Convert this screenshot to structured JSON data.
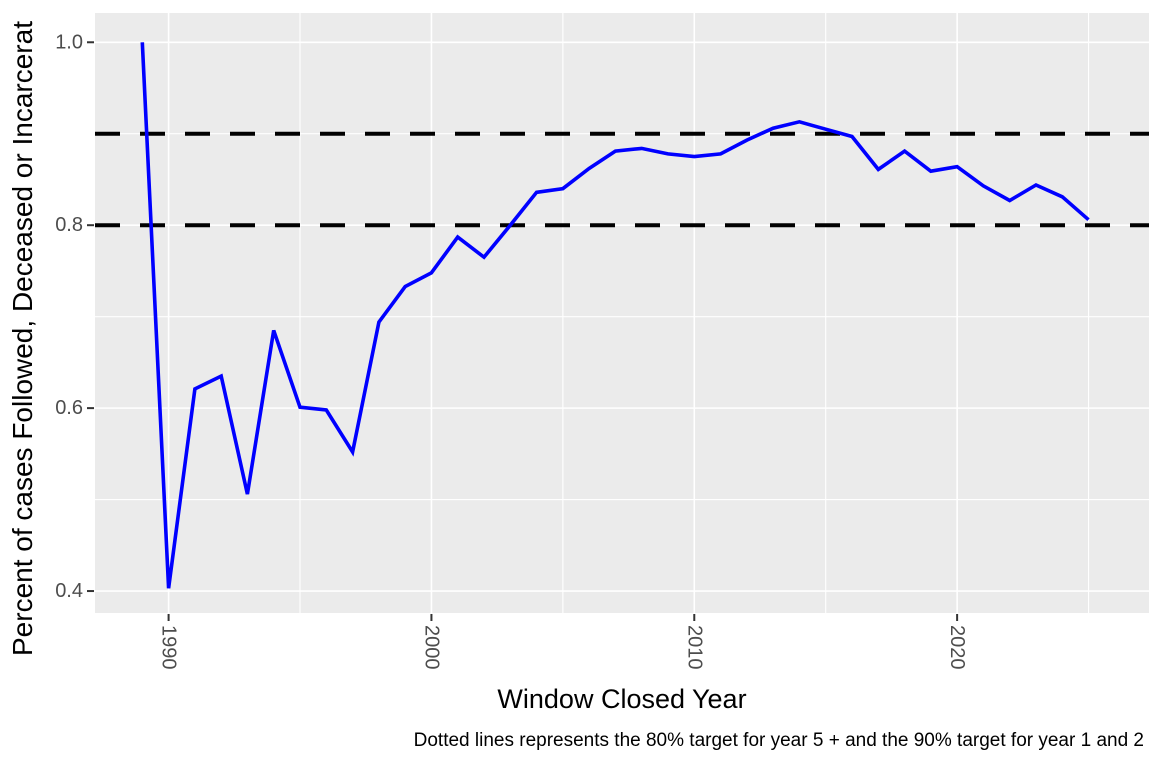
{
  "figure": {
    "y_axis_title": "Percent of cases Followed, Deceased or Incarcerat",
    "x_axis_title": "Window Closed Year",
    "caption": "Dotted lines represents the 80% target for year 5 + and the 90% target for year 1 and 2"
  },
  "chart_data": {
    "type": "line",
    "title": "",
    "xlabel": "Window Closed Year",
    "ylabel": "Percent of cases Followed, Deceased or Incarcerat",
    "caption": "Dotted lines represents the 80% target for year 5 + and the 90% target for year 1 and 2",
    "x": [
      1989,
      1990,
      1991,
      1992,
      1993,
      1994,
      1995,
      1996,
      1997,
      1998,
      1999,
      2000,
      2001,
      2002,
      2003,
      2004,
      2005,
      2006,
      2007,
      2008,
      2009,
      2010,
      2011,
      2012,
      2013,
      2014,
      2015,
      2016,
      2017,
      2018,
      2019,
      2020,
      2021,
      2022,
      2023,
      2024,
      2025
    ],
    "series": [
      {
        "name": "percent-of-cases-followed",
        "color": "#0000FF",
        "values": [
          1.0,
          0.403,
          0.621,
          0.635,
          0.506,
          0.685,
          0.601,
          0.598,
          0.552,
          0.694,
          0.733,
          0.748,
          0.787,
          0.765,
          0.8,
          0.836,
          0.84,
          0.862,
          0.881,
          0.884,
          0.878,
          0.875,
          0.878,
          0.893,
          0.906,
          0.913,
          0.905,
          0.897,
          0.861,
          0.881,
          0.859,
          0.864,
          0.843,
          0.827,
          0.844,
          0.831,
          0.806
        ]
      }
    ],
    "reference_lines": [
      {
        "value": 0.9,
        "style": "dashed",
        "color": "#000000"
      },
      {
        "value": 0.8,
        "style": "dashed",
        "color": "#000000"
      }
    ],
    "x_ticks": [
      1990,
      2000,
      2010,
      2020
    ],
    "x_tick_labels": [
      "1990",
      "2000",
      "2010",
      "2020"
    ],
    "x_minor_ticks": [
      1995,
      2005,
      2015,
      2025
    ],
    "y_ticks": [
      0.4,
      0.6,
      0.8,
      1.0
    ],
    "y_tick_labels": [
      "0.4",
      "0.6",
      "0.8",
      "1.0"
    ],
    "y_minor_ticks": [
      0.5,
      0.7,
      0.9
    ],
    "xlim": [
      1987.2,
      2027.3
    ],
    "ylim": [
      0.376,
      1.032
    ],
    "grid": true,
    "legend": "none",
    "panel_background": "#EBEBEB",
    "grid_color": "#FFFFFF",
    "axis_text_color": "#4D4D4D",
    "tick_mark_color": "#333333"
  }
}
